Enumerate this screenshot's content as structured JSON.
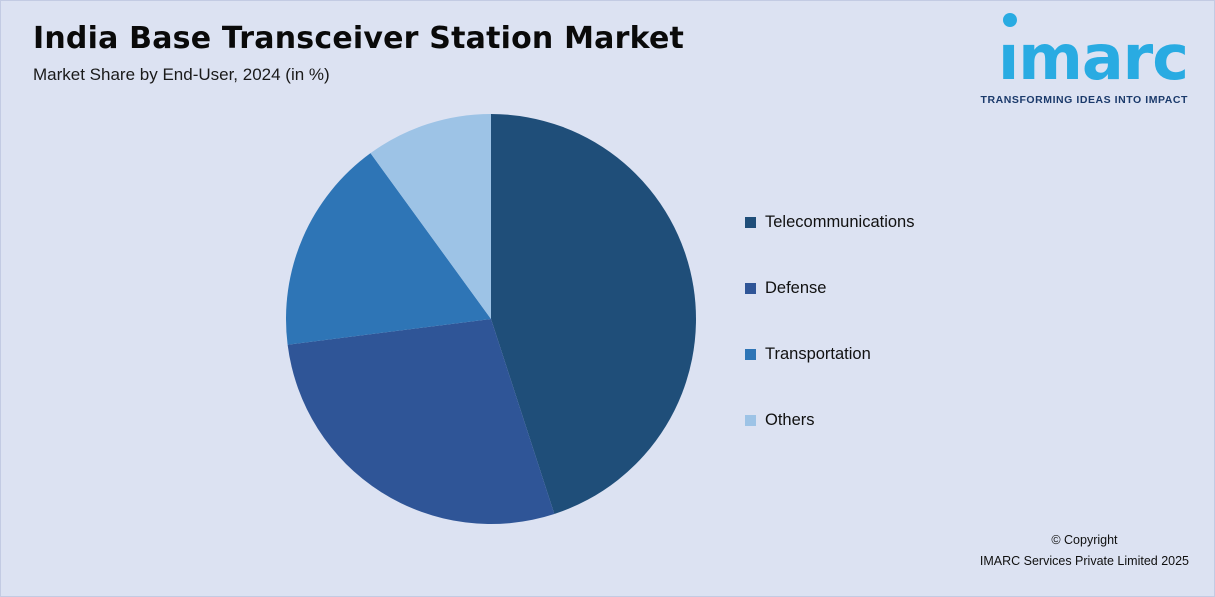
{
  "page": {
    "background": "#dce2f2"
  },
  "header": {
    "title": "India Base Transceiver Station Market",
    "subtitle": "Market Share by End-User, 2024 (in %)"
  },
  "logo": {
    "brand": "imarc",
    "brand_dotless": "ımarc",
    "tagline": "TRANSFORMING IDEAS INTO IMPACT",
    "brand_color": "#29abe2",
    "tagline_color": "#1b3a6b"
  },
  "footer": {
    "copyright_line1": "© Copyright",
    "copyright_line2": "IMARC Services Private Limited 2025"
  },
  "chart_data": {
    "type": "pie",
    "title": "India Base Transceiver Station Market",
    "subtitle": "Market Share by End-User, 2024 (in %)",
    "categories": [
      "Telecommunications",
      "Defense",
      "Transportation",
      "Others"
    ],
    "values": [
      45,
      28,
      17,
      10
    ],
    "colors": [
      "#1f4e79",
      "#2f5597",
      "#2e75b6",
      "#9dc3e6"
    ],
    "start_angle_deg": 0,
    "direction": "clockwise",
    "legend_position": "right",
    "data_labels": false
  }
}
